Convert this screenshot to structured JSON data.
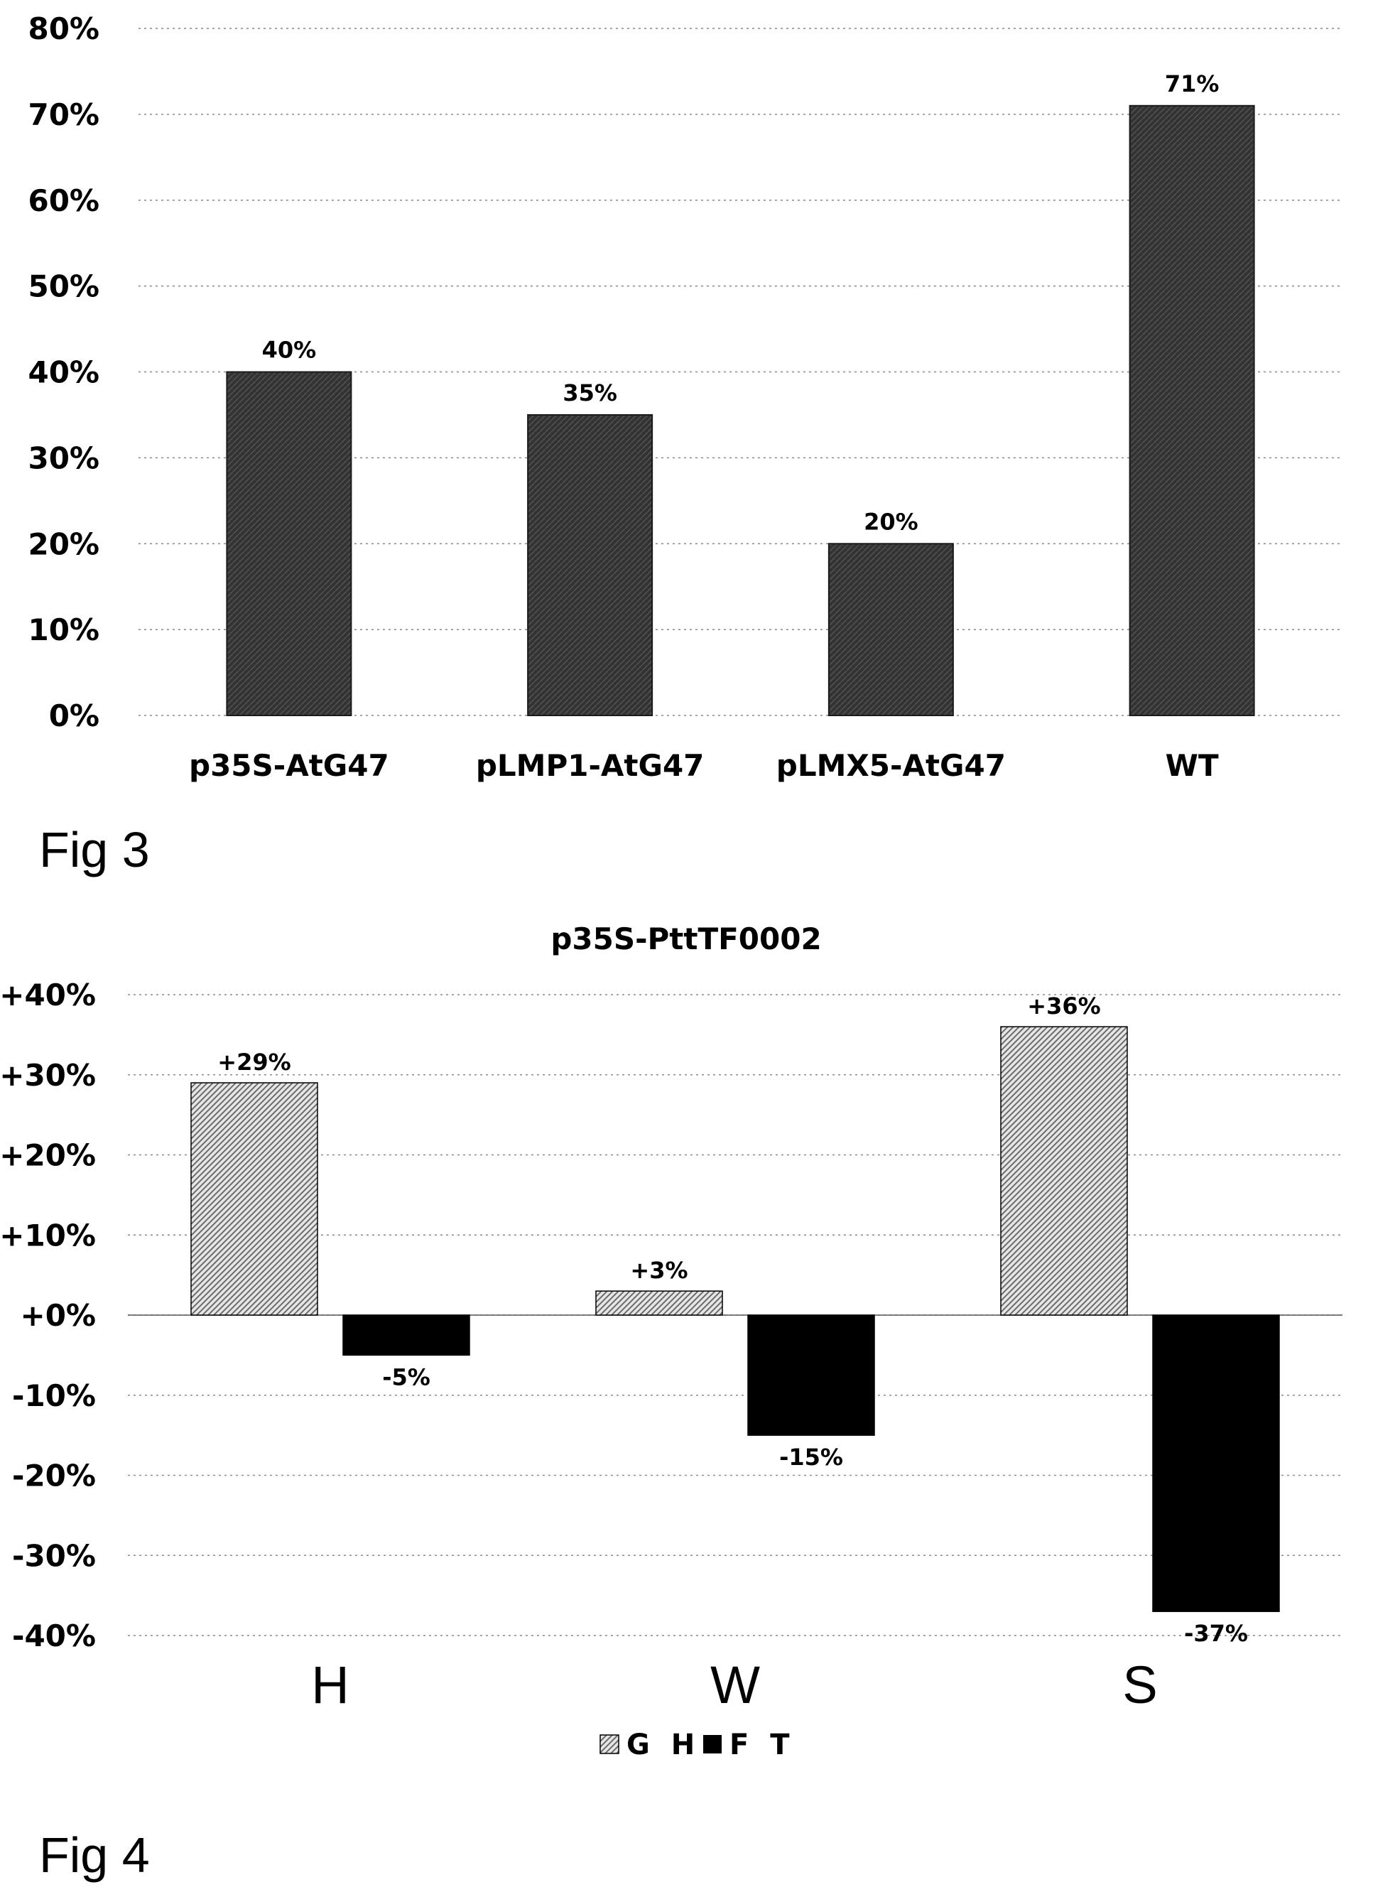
{
  "figures": [
    {
      "caption": "Fig 3"
    },
    {
      "caption": "Fig 4"
    }
  ],
  "chart_data": [
    {
      "type": "bar",
      "title": "",
      "categories": [
        "p35S-AtG47",
        "pLMP1-AtG47",
        "pLMX5-AtG47",
        "WT"
      ],
      "values": [
        40,
        35,
        20,
        71
      ],
      "data_labels": [
        "40%",
        "35%",
        "20%",
        "71%"
      ],
      "ylim": [
        0,
        80
      ],
      "yticks": [
        "0%",
        "10%",
        "20%",
        "30%",
        "40%",
        "50%",
        "60%",
        "70%",
        "80%"
      ],
      "grid": true,
      "fill_color": "#3a3a3a"
    },
    {
      "type": "bar",
      "title": "p35S-PttTF0002",
      "categories": [
        "H",
        "W",
        "S"
      ],
      "series": [
        {
          "name": "G H",
          "values": [
            29,
            3,
            36
          ],
          "data_labels": [
            "+29%",
            "+3%",
            "+36%"
          ],
          "color": "#bdbdbd",
          "pattern": "hatched"
        },
        {
          "name": "F T",
          "values": [
            -5,
            -15,
            -37
          ],
          "data_labels": [
            "-5%",
            "-15%",
            "-37%"
          ],
          "color": "#000000",
          "pattern": "solid"
        }
      ],
      "ylim": [
        -40,
        40
      ],
      "yticks": [
        "-40%",
        "-30%",
        "-20%",
        "-10%",
        "+0%",
        "+10%",
        "+20%",
        "+30%",
        "+40%"
      ],
      "grid": true,
      "legend_position": "bottom"
    }
  ]
}
